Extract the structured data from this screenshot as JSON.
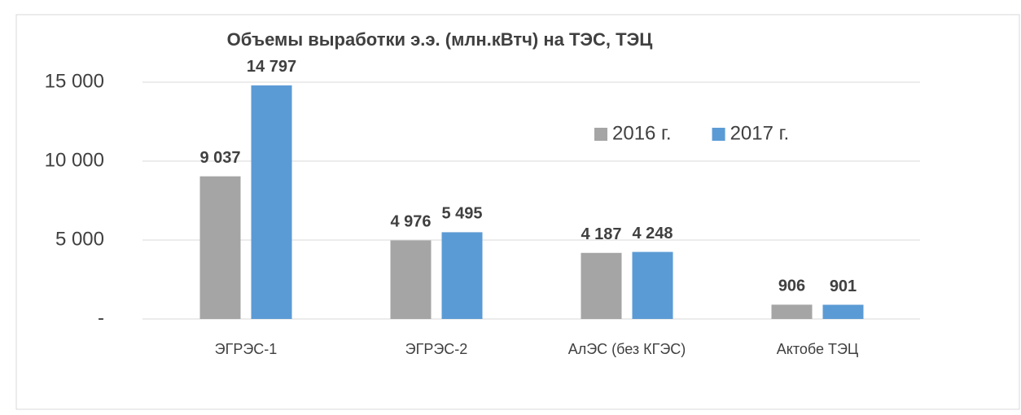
{
  "chart_data": {
    "type": "bar",
    "title": "Объемы выработки э.э. (млн.кВтч) на ТЭС, ТЭЦ",
    "categories": [
      "ЭГРЭС-1",
      "ЭГРЭС-2",
      "АлЭС (без КГЭС)",
      "Актобе ТЭЦ"
    ],
    "series": [
      {
        "name": "2016 г.",
        "color": "#a5a5a5",
        "values": [
          9037,
          4976,
          4187,
          906
        ],
        "value_labels": [
          "9 037",
          "4 976",
          "4 187",
          "906"
        ]
      },
      {
        "name": "2017 г.",
        "color": "#5b9bd5",
        "values": [
          14797,
          5495,
          4248,
          901
        ],
        "value_labels": [
          "14 797",
          "5 495",
          "4 248",
          "901"
        ]
      }
    ],
    "ylim": [
      0,
      15000
    ],
    "yticks": [
      {
        "value": 0,
        "label": "-"
      },
      {
        "value": 5000,
        "label": "5 000"
      },
      {
        "value": 10000,
        "label": "10 000"
      },
      {
        "value": 15000,
        "label": "15 000"
      }
    ],
    "grid": true,
    "legend": "upper right"
  }
}
